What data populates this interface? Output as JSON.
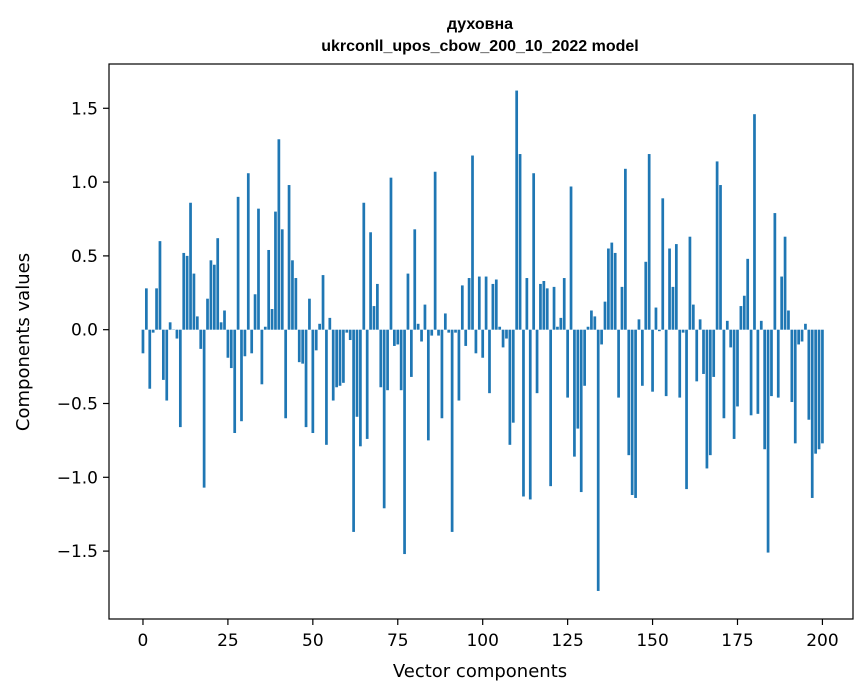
{
  "chart_data": {
    "type": "bar",
    "title": "духовна",
    "subtitle": "ukrconll_upos_cbow_200_10_2022 model",
    "xlabel": "Vector components",
    "ylabel": "Components values",
    "xlim": [
      -10,
      209
    ],
    "ylim": [
      -1.96,
      1.8
    ],
    "xticks": [
      0,
      25,
      50,
      75,
      100,
      125,
      150,
      175,
      200
    ],
    "xtick_labels": [
      "0",
      "25",
      "50",
      "75",
      "100",
      "125",
      "150",
      "175",
      "200"
    ],
    "yticks": [
      1.5,
      1.0,
      0.5,
      0.0,
      -0.5,
      -1.0,
      -1.5
    ],
    "ytick_labels": [
      "1.5",
      "1.0",
      "0.5",
      "0.0",
      "−0.5",
      "−1.0",
      "−1.5"
    ],
    "bar_color": "#1f77b4",
    "values": [
      -0.16,
      0.28,
      -0.4,
      -0.02,
      0.28,
      0.6,
      -0.34,
      -0.48,
      0.05,
      0.0,
      -0.06,
      -0.66,
      0.52,
      0.5,
      0.86,
      0.38,
      0.09,
      -0.13,
      -1.07,
      0.21,
      0.47,
      0.44,
      0.62,
      0.05,
      0.13,
      -0.19,
      -0.26,
      -0.7,
      0.9,
      -0.62,
      -0.18,
      1.06,
      -0.16,
      0.24,
      0.82,
      -0.37,
      0.02,
      0.54,
      0.14,
      0.8,
      1.29,
      0.68,
      -0.6,
      0.98,
      0.47,
      0.35,
      -0.22,
      -0.23,
      -0.66,
      0.21,
      -0.7,
      -0.14,
      0.04,
      0.37,
      -0.78,
      0.08,
      -0.48,
      -0.39,
      -0.38,
      -0.36,
      -0.02,
      -0.07,
      -1.37,
      -0.59,
      -0.79,
      0.86,
      -0.74,
      0.66,
      0.16,
      0.31,
      -0.39,
      -1.21,
      -0.41,
      1.03,
      -0.11,
      -0.1,
      -0.41,
      -1.52,
      0.38,
      -0.32,
      0.68,
      0.04,
      -0.08,
      0.17,
      -0.75,
      -0.04,
      1.07,
      -0.04,
      -0.6,
      0.11,
      -0.02,
      -1.37,
      -0.02,
      -0.48,
      0.3,
      -0.11,
      0.35,
      1.18,
      -0.16,
      0.36,
      -0.19,
      0.36,
      -0.43,
      0.31,
      0.34,
      0.02,
      -0.12,
      -0.06,
      -0.78,
      -0.63,
      1.62,
      1.19,
      -1.13,
      0.35,
      -1.15,
      1.06,
      -0.43,
      0.31,
      0.33,
      0.28,
      -1.06,
      0.29,
      0.02,
      0.08,
      0.35,
      -0.46,
      0.97,
      -0.86,
      -0.67,
      -1.1,
      -0.38,
      0.02,
      0.13,
      0.09,
      -1.77,
      -0.1,
      0.19,
      0.55,
      0.59,
      0.52,
      -0.46,
      0.29,
      1.09,
      -0.85,
      -1.12,
      -1.14,
      0.07,
      -0.38,
      0.46,
      1.19,
      -0.42,
      0.15,
      -0.01,
      0.89,
      -0.45,
      0.55,
      0.29,
      0.58,
      -0.46,
      -0.02,
      -1.08,
      0.63,
      0.17,
      -0.35,
      0.07,
      -0.3,
      -0.94,
      -0.85,
      -0.32,
      1.14,
      0.98,
      -0.6,
      0.06,
      -0.12,
      -0.74,
      -0.52,
      0.16,
      0.23,
      0.48,
      -0.58,
      1.46,
      -0.57,
      0.06,
      -0.81,
      -1.51,
      -0.45,
      0.79,
      -0.46,
      0.36,
      0.63,
      0.13,
      -0.49,
      -0.77,
      -0.1,
      -0.08,
      0.04,
      -0.61,
      -1.14,
      -0.84,
      -0.81,
      -0.77
    ]
  }
}
